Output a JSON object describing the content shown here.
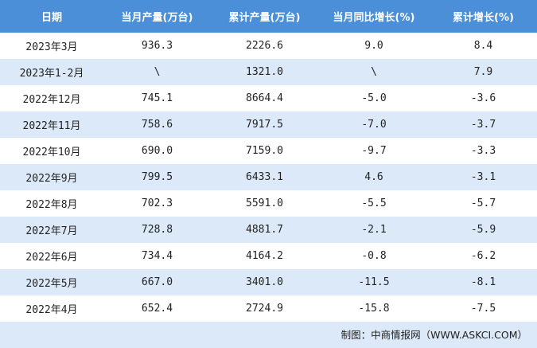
{
  "table": {
    "headers": [
      "日期",
      "当月产量(万台)",
      "累计产量(万台)",
      "当月同比增长(%)",
      "累计增长(%)"
    ],
    "rows": [
      [
        "2023年3月",
        "936.3",
        "2226.6",
        "9.0",
        "8.4"
      ],
      [
        "2023年1-2月",
        "\\",
        "1321.0",
        "\\",
        "7.9"
      ],
      [
        "2022年12月",
        "745.1",
        "8664.4",
        "-5.0",
        "-3.6"
      ],
      [
        "2022年11月",
        "758.6",
        "7917.5",
        "-7.0",
        "-3.7"
      ],
      [
        "2022年10月",
        "690.0",
        "7159.0",
        "-9.7",
        "-3.3"
      ],
      [
        "2022年9月",
        "799.5",
        "6433.1",
        "4.6",
        "-3.1"
      ],
      [
        "2022年8月",
        "702.3",
        "5591.0",
        "-5.5",
        "-5.7"
      ],
      [
        "2022年7月",
        "728.8",
        "4881.7",
        "-2.1",
        "-5.9"
      ],
      [
        "2022年6月",
        "734.4",
        "4164.2",
        "-0.8",
        "-6.2"
      ],
      [
        "2022年5月",
        "667.0",
        "3401.0",
        "-11.5",
        "-8.1"
      ],
      [
        "2022年4月",
        "652.4",
        "2724.9",
        "-15.8",
        "-7.5"
      ]
    ]
  },
  "source": "制图：中商情报网（WWW.ASKCI.COM）"
}
